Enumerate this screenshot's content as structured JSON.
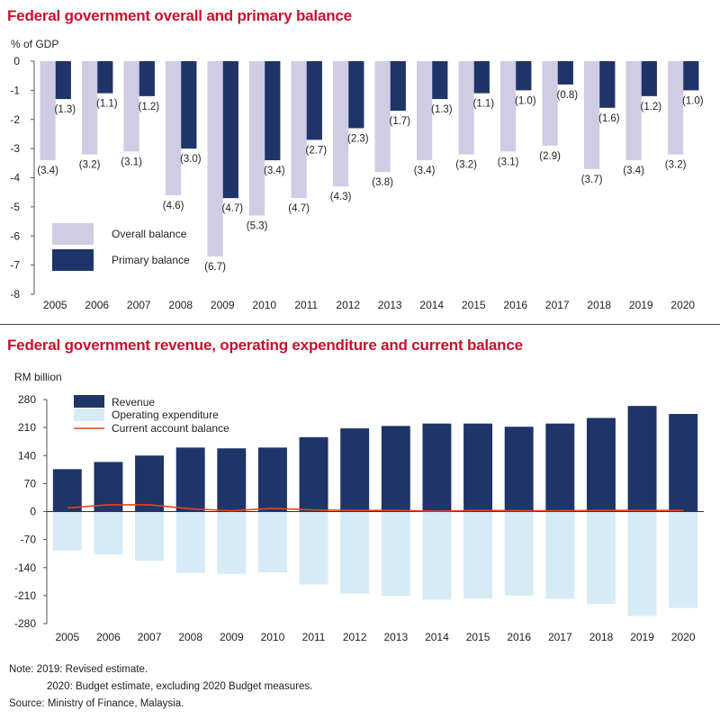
{
  "chart1": {
    "title": "Federal government overall and primary balance",
    "unit": "% of GDP"
  },
  "chart2": {
    "title": "Federal government revenue, operating expenditure and current balance",
    "unit": "RM billion"
  },
  "notes": {
    "line1": "Note: 2019: Revised estimate.",
    "line2": "2020: Budget estimate, excluding 2020 Budget measures.",
    "source": "Source: Ministry of Finance, Malaysia."
  },
  "colors": {
    "title": "#c8102e",
    "overall": "#cfcce4",
    "primary": "#1f3468",
    "revenue": "#1f3468",
    "opex": "#d6ebf6",
    "current": "#e8441c"
  },
  "chart_data": [
    {
      "type": "bar",
      "title": "Federal government overall and primary balance",
      "ylabel": "% of GDP",
      "ylim": [
        -8,
        0
      ],
      "yticks": [
        0,
        -1,
        -2,
        -3,
        -4,
        -5,
        -6,
        -7,
        -8
      ],
      "categories": [
        "2005",
        "2006",
        "2007",
        "2008",
        "2009",
        "2010",
        "2011",
        "2012",
        "2013",
        "2014",
        "2015",
        "2016",
        "2017",
        "2018",
        "2019",
        "2020"
      ],
      "series": [
        {
          "name": "Overall balance",
          "values": [
            -3.4,
            -3.2,
            -3.1,
            -4.6,
            -6.7,
            -5.3,
            -4.7,
            -4.3,
            -3.8,
            -3.4,
            -3.2,
            -3.1,
            -2.9,
            -3.7,
            -3.4,
            -3.2
          ],
          "labels": [
            "(3.4)",
            "(3.2)",
            "(3.1)",
            "(4.6)",
            "(6.7)",
            "(5.3)",
            "(4.7)",
            "(4.3)",
            "(3.8)",
            "(3.4)",
            "(3.2)",
            "(3.1)",
            "(2.9)",
            "(3.7)",
            "(3.4)",
            "(3.2)"
          ]
        },
        {
          "name": "Primary balance",
          "values": [
            -1.3,
            -1.1,
            -1.2,
            -3.0,
            -4.7,
            -3.4,
            -2.7,
            -2.3,
            -1.7,
            -1.3,
            -1.1,
            -1.0,
            -0.8,
            -1.6,
            -1.2,
            -1.0
          ],
          "labels": [
            "(1.3)",
            "(1.1)",
            "(1.2)",
            "(3.0)",
            "(4.7)",
            "(3.4)",
            "(2.7)",
            "(2.3)",
            "(1.7)",
            "(1.3)",
            "(1.1)",
            "(1.0)",
            "(0.8)",
            "(1.6)",
            "(1.2)",
            "(1.0)"
          ]
        }
      ],
      "legend": "bottom-left",
      "grid": false
    },
    {
      "type": "bar",
      "title": "Federal government revenue, operating expenditure and current balance",
      "ylabel": "RM billion",
      "ylim": [
        -280,
        280
      ],
      "yticks": [
        280,
        210,
        140,
        70,
        0,
        -70,
        -140,
        -210,
        -280
      ],
      "categories": [
        "2005",
        "2006",
        "2007",
        "2008",
        "2009",
        "2010",
        "2011",
        "2012",
        "2013",
        "2014",
        "2015",
        "2016",
        "2017",
        "2018",
        "2019",
        "2020"
      ],
      "series": [
        {
          "name": "Revenue",
          "values": [
            106,
            124,
            140,
            160,
            158,
            160,
            186,
            208,
            214,
            220,
            220,
            212,
            220,
            234,
            264,
            244
          ]
        },
        {
          "name": "Operating expenditure",
          "values": [
            -97,
            -107,
            -123,
            -153,
            -156,
            -152,
            -182,
            -205,
            -211,
            -220,
            -217,
            -210,
            -218,
            -231,
            -261,
            -241
          ]
        },
        {
          "name": "Current account balance",
          "type": "line",
          "values": [
            9,
            17,
            17,
            7,
            2,
            8,
            4,
            3,
            3,
            1,
            3,
            2,
            2,
            3,
            3,
            3
          ]
        }
      ],
      "legend": "top-left",
      "grid": false
    }
  ]
}
